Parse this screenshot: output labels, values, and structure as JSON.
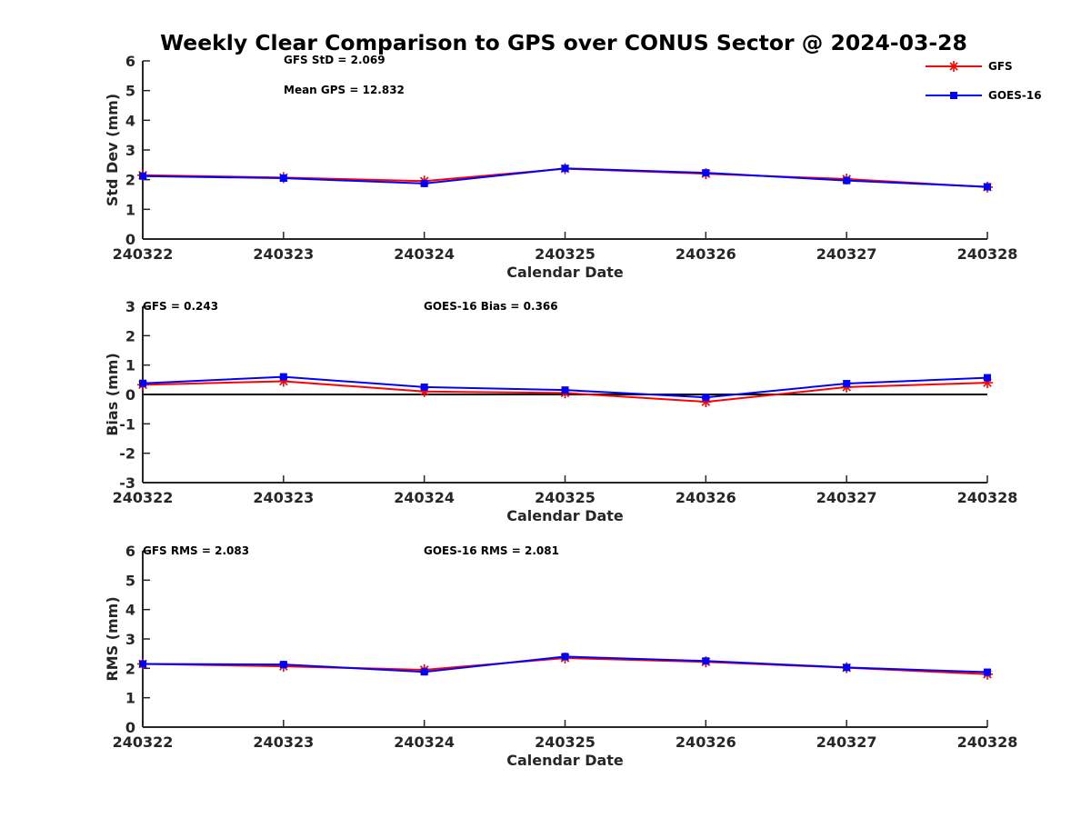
{
  "title": "Weekly Clear Comparison to GPS over CONUS Sector @ 2024-03-28",
  "legend": {
    "position": "top-right",
    "entries": [
      {
        "label": "GFS",
        "color": "#ff0000",
        "marker": "asterisk"
      },
      {
        "label": "GOES-16",
        "color": "#0000ff",
        "marker": "square"
      }
    ]
  },
  "chart_data": [
    {
      "type": "line",
      "title": "",
      "xlabel": "Calendar Date",
      "ylabel": "Std Dev (mm)",
      "categories": [
        "240322",
        "240323",
        "240324",
        "240325",
        "240326",
        "240327",
        "240328"
      ],
      "ylim": [
        0,
        6
      ],
      "yticks": [
        "0",
        "1",
        "2",
        "3",
        "4",
        "5",
        "6"
      ],
      "zero_line": false,
      "series": [
        {
          "name": "GFS",
          "color": "#ff0000",
          "values": [
            2.15,
            2.07,
            1.95,
            2.37,
            2.2,
            2.02,
            1.75
          ]
        },
        {
          "name": "GOES-16",
          "color": "#0000ff",
          "values": [
            2.12,
            2.05,
            1.87,
            2.38,
            2.23,
            1.97,
            1.76
          ]
        }
      ],
      "annotations": [
        {
          "text": "GFS StD = 2.069"
        },
        {
          "text": "Mean GPS = 12.832"
        }
      ]
    },
    {
      "type": "line",
      "title": "",
      "xlabel": "Calendar Date",
      "ylabel": "Bias (mm)",
      "categories": [
        "240322",
        "240323",
        "240324",
        "240325",
        "240326",
        "240327",
        "240328"
      ],
      "ylim": [
        -3,
        3
      ],
      "yticks": [
        "-3",
        "-2",
        "-1",
        "0",
        "1",
        "2",
        "3"
      ],
      "zero_line": true,
      "series": [
        {
          "name": "GFS",
          "color": "#ff0000",
          "values": [
            0.33,
            0.45,
            0.1,
            0.05,
            -0.25,
            0.25,
            0.4
          ]
        },
        {
          "name": "GOES-16",
          "color": "#0000ff",
          "values": [
            0.38,
            0.6,
            0.25,
            0.15,
            -0.1,
            0.37,
            0.57
          ]
        }
      ],
      "annotations": [
        {
          "text": "GFS = 0.243"
        },
        {
          "text": "GOES-16 Bias  = 0.366"
        }
      ]
    },
    {
      "type": "line",
      "title": "",
      "xlabel": "Calendar Date",
      "ylabel": "RMS (mm)",
      "categories": [
        "240322",
        "240323",
        "240324",
        "240325",
        "240326",
        "240327",
        "240328"
      ],
      "ylim": [
        0,
        6
      ],
      "yticks": [
        "0",
        "1",
        "2",
        "3",
        "4",
        "5",
        "6"
      ],
      "zero_line": false,
      "series": [
        {
          "name": "GFS",
          "color": "#ff0000",
          "values": [
            2.15,
            2.07,
            1.95,
            2.35,
            2.22,
            2.02,
            1.8
          ]
        },
        {
          "name": "GOES-16",
          "color": "#0000ff",
          "values": [
            2.15,
            2.13,
            1.88,
            2.4,
            2.25,
            2.03,
            1.87
          ]
        }
      ],
      "annotations": [
        {
          "text": "GFS RMS = 2.083"
        },
        {
          "text": "GOES-16 RMS = 2.081"
        }
      ]
    }
  ]
}
